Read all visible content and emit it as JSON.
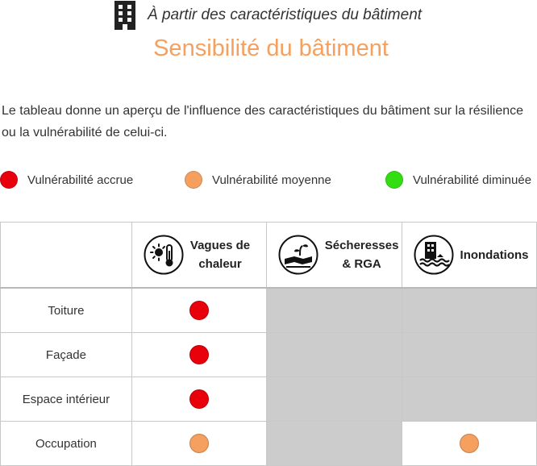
{
  "header": {
    "subtitle": "À partir des caractéristiques du bâtiment",
    "title": "Sensibilité du bâtiment",
    "icon": "building-icon"
  },
  "intro": "Le tableau donne un aperçu de l'influence des caractéristiques du bâtiment sur la résilience ou la vulnérabilité de celui-ci.",
  "legend": [
    {
      "label": "Vulnérabilité accrue",
      "color": "#e8000b"
    },
    {
      "label": "Vulnérabilité moyenne",
      "color": "#f5a05f"
    },
    {
      "label": "Vulnérabilité diminuée",
      "color": "#33dd11"
    }
  ],
  "colors": {
    "title": "#f5a05f",
    "na_cell": "#cccccc"
  },
  "table": {
    "columns": [
      {
        "label_line1": "Vagues de",
        "label_line2": "chaleur",
        "icon": "sun-thermometer-icon"
      },
      {
        "label_line1": "Sécheresses",
        "label_line2": "& RGA",
        "icon": "drought-icon"
      },
      {
        "label_line1": "Inondations",
        "label_line2": "",
        "icon": "flood-icon"
      }
    ],
    "rows": [
      {
        "label": "Toiture",
        "cells": [
          "high",
          "na",
          "na"
        ]
      },
      {
        "label": "Façade",
        "cells": [
          "high",
          "na",
          "na"
        ]
      },
      {
        "label": "Espace intérieur",
        "cells": [
          "high",
          "na",
          "na"
        ]
      },
      {
        "label": "Occupation",
        "cells": [
          "medium",
          "na",
          "medium"
        ]
      }
    ]
  }
}
